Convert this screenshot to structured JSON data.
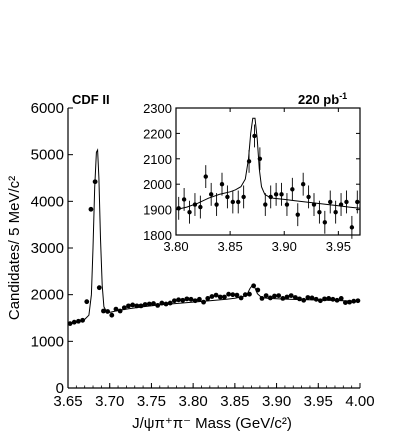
{
  "chart_data": [
    {
      "type": "scatter",
      "panel": "main",
      "header_left": "CDF II",
      "header_right": "220 pb",
      "header_right_sup": "-1",
      "xlabel": "J/ψπ⁺π⁻ Mass  (GeV/c²)",
      "ylabel": "Candidates/ 5 MeV/c²",
      "xlim": [
        3.65,
        4.0
      ],
      "ylim": [
        0,
        6000
      ],
      "xticks": [
        "3.65",
        "3.70",
        "3.75",
        "3.80",
        "3.85",
        "3.90",
        "3.95",
        "4.00"
      ],
      "yticks": [
        "0",
        "1000",
        "2000",
        "3000",
        "4000",
        "5000",
        "6000"
      ],
      "grid": false,
      "series": [
        {
          "style": "points",
          "x": [
            3.6525,
            3.6575,
            3.6625,
            3.6675,
            3.6725,
            3.6775,
            3.6825,
            3.6875,
            3.6925,
            3.6975,
            3.7025,
            3.7075,
            3.7125,
            3.7175,
            3.7225,
            3.7275,
            3.7325,
            3.7375,
            3.7425,
            3.7475,
            3.7525,
            3.7575,
            3.7625,
            3.7675,
            3.7725,
            3.7775,
            3.7825,
            3.7875,
            3.7925,
            3.7975,
            3.8025,
            3.8075,
            3.8125,
            3.8175,
            3.8225,
            3.8275,
            3.8325,
            3.8375,
            3.8425,
            3.8475,
            3.8525,
            3.8575,
            3.8625,
            3.8675,
            3.8725,
            3.8775,
            3.8825,
            3.8875,
            3.8925,
            3.8975,
            3.9025,
            3.9075,
            3.9125,
            3.9175,
            3.9225,
            3.9275,
            3.9325,
            3.9375,
            3.9425,
            3.9475,
            3.9525,
            3.9575,
            3.9625,
            3.9675,
            3.9725,
            3.9775,
            3.9825,
            3.9875,
            3.9925,
            3.9975
          ],
          "y": [
            1380,
            1410,
            1430,
            1450,
            1850,
            3830,
            4420,
            2150,
            1650,
            1640,
            1560,
            1690,
            1650,
            1720,
            1760,
            1780,
            1760,
            1760,
            1790,
            1800,
            1810,
            1770,
            1820,
            1800,
            1820,
            1870,
            1890,
            1880,
            1910,
            1900,
            1870,
            1900,
            1840,
            1920,
            1960,
            1990,
            1950,
            1950,
            2010,
            2000,
            1990,
            1930,
            2000,
            2010,
            2190,
            2100,
            1920,
            1980,
            1930,
            1970,
            1980,
            1920,
            1950,
            1980,
            1940,
            1910,
            1880,
            1940,
            1930,
            1900,
            1870,
            1910,
            1920,
            1900,
            1880,
            1920,
            1830,
            1840,
            1860,
            1870
          ]
        },
        {
          "style": "line",
          "x": [
            3.65,
            3.66,
            3.67,
            3.675,
            3.678,
            3.68,
            3.682,
            3.684,
            3.6855,
            3.687,
            3.689,
            3.691,
            3.693,
            3.697,
            3.7,
            3.71,
            3.72,
            3.74,
            3.76,
            3.78,
            3.8,
            3.82,
            3.84,
            3.85,
            3.86,
            3.865,
            3.868,
            3.871,
            3.874,
            3.877,
            3.882,
            3.89,
            3.91,
            3.93,
            3.95,
            3.97,
            4.0
          ],
          "y": [
            1380,
            1420,
            1470,
            1560,
            2000,
            3000,
            4300,
            5050,
            5100,
            4500,
            3200,
            2200,
            1740,
            1610,
            1620,
            1660,
            1690,
            1740,
            1780,
            1810,
            1840,
            1870,
            1900,
            1925,
            1960,
            2020,
            2130,
            2200,
            2150,
            2020,
            1940,
            1920,
            1905,
            1895,
            1885,
            1875,
            1860
          ]
        }
      ]
    },
    {
      "type": "scatter",
      "panel": "inset",
      "xlim": [
        3.8,
        3.97
      ],
      "ylim": [
        1800,
        2300
      ],
      "xticks": [
        "3.80",
        "3.85",
        "3.90",
        "3.95"
      ],
      "yticks": [
        "1800",
        "1900",
        "2000",
        "2100",
        "2200",
        "2300"
      ],
      "grid": false,
      "series": [
        {
          "style": "points_with_errors",
          "x": [
            3.8025,
            3.8075,
            3.8125,
            3.8175,
            3.8225,
            3.8275,
            3.8325,
            3.8375,
            3.8425,
            3.8475,
            3.8525,
            3.8575,
            3.8625,
            3.8675,
            3.8725,
            3.8775,
            3.8825,
            3.8875,
            3.8925,
            3.8975,
            3.9025,
            3.9075,
            3.9125,
            3.9175,
            3.9225,
            3.9275,
            3.9325,
            3.9375,
            3.9425,
            3.9475,
            3.9525,
            3.9575,
            3.9625,
            3.9675
          ],
          "y": [
            1905,
            1940,
            1890,
            1920,
            1910,
            2030,
            1960,
            1920,
            2000,
            1950,
            1930,
            1930,
            1950,
            2090,
            2190,
            2100,
            1920,
            1950,
            1960,
            1960,
            1920,
            1980,
            1880,
            2000,
            1950,
            1920,
            1890,
            1850,
            1930,
            1890,
            1920,
            1930,
            1830,
            1930
          ],
          "err": [
            45,
            45,
            45,
            45,
            45,
            45,
            45,
            45,
            45,
            45,
            45,
            45,
            45,
            45,
            45,
            45,
            45,
            45,
            45,
            45,
            45,
            45,
            45,
            45,
            45,
            45,
            45,
            45,
            45,
            45,
            45,
            45,
            45,
            45
          ]
        },
        {
          "style": "line",
          "x": [
            3.8,
            3.81,
            3.82,
            3.83,
            3.84,
            3.85,
            3.855,
            3.86,
            3.864,
            3.867,
            3.869,
            3.871,
            3.873,
            3.875,
            3.877,
            3.879,
            3.882,
            3.886,
            3.89,
            3.9,
            3.91,
            3.92,
            3.93,
            3.94,
            3.95,
            3.96,
            3.97
          ],
          "y": [
            1900,
            1910,
            1925,
            1945,
            1960,
            1970,
            1978,
            1990,
            2020,
            2100,
            2200,
            2260,
            2260,
            2180,
            2060,
            1990,
            1960,
            1950,
            1945,
            1940,
            1935,
            1930,
            1925,
            1920,
            1915,
            1910,
            1905
          ]
        }
      ]
    }
  ]
}
